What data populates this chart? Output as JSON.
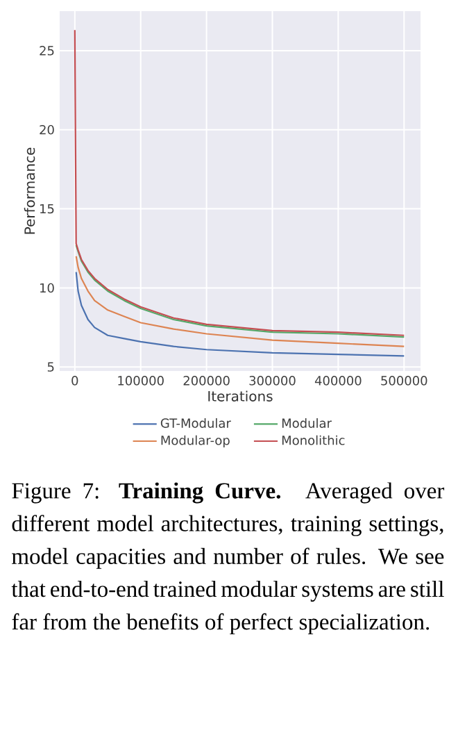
{
  "chart_data": {
    "type": "line",
    "xlabel": "Iterations",
    "ylabel": "Performance",
    "xlim": [
      -23000,
      525000
    ],
    "ylim": [
      4.75,
      27.5
    ],
    "xticks": [
      0,
      100000,
      200000,
      300000,
      400000,
      500000
    ],
    "yticks": [
      5,
      10,
      15,
      20,
      25
    ],
    "grid": true,
    "legend": "bottom",
    "marker": "none",
    "line_style": "solid",
    "series": [
      {
        "name": "GT-Modular",
        "color": "#4c72b0",
        "x": [
          2000,
          5000,
          10000,
          20000,
          30000,
          50000,
          75000,
          100000,
          150000,
          200000,
          300000,
          400000,
          500000
        ],
        "values": [
          11.0,
          9.8,
          8.9,
          8.0,
          7.5,
          7.0,
          6.8,
          6.6,
          6.3,
          6.1,
          5.9,
          5.8,
          5.7
        ]
      },
      {
        "name": "Modular",
        "color": "#55a868",
        "x": [
          2000,
          5000,
          10000,
          20000,
          30000,
          50000,
          75000,
          100000,
          150000,
          200000,
          300000,
          400000,
          500000
        ],
        "values": [
          12.7,
          12.3,
          11.7,
          11.0,
          10.5,
          9.8,
          9.2,
          8.7,
          8.0,
          7.6,
          7.2,
          7.1,
          6.9
        ]
      },
      {
        "name": "Modular-op",
        "color": "#dd8452",
        "x": [
          2000,
          5000,
          10000,
          20000,
          30000,
          50000,
          75000,
          100000,
          150000,
          200000,
          300000,
          400000,
          500000
        ],
        "values": [
          12.0,
          11.3,
          10.6,
          9.8,
          9.2,
          8.6,
          8.2,
          7.8,
          7.4,
          7.1,
          6.7,
          6.5,
          6.3
        ]
      },
      {
        "name": "Monolithic",
        "color": "#c44e52",
        "x": [
          0,
          2000,
          5000,
          10000,
          20000,
          30000,
          50000,
          75000,
          100000,
          150000,
          200000,
          300000,
          400000,
          500000
        ],
        "values": [
          26.3,
          12.8,
          12.4,
          11.8,
          11.1,
          10.6,
          9.9,
          9.3,
          8.8,
          8.1,
          7.7,
          7.3,
          7.2,
          7.0
        ]
      }
    ],
    "annotations": [
      "Figure 7: **Training Curve.** Averaged over different model architectures, training settings, model capacities and number of rules. We see that end-to-end trained modular systems are still far from the benefits of perfect specialization."
    ]
  }
}
